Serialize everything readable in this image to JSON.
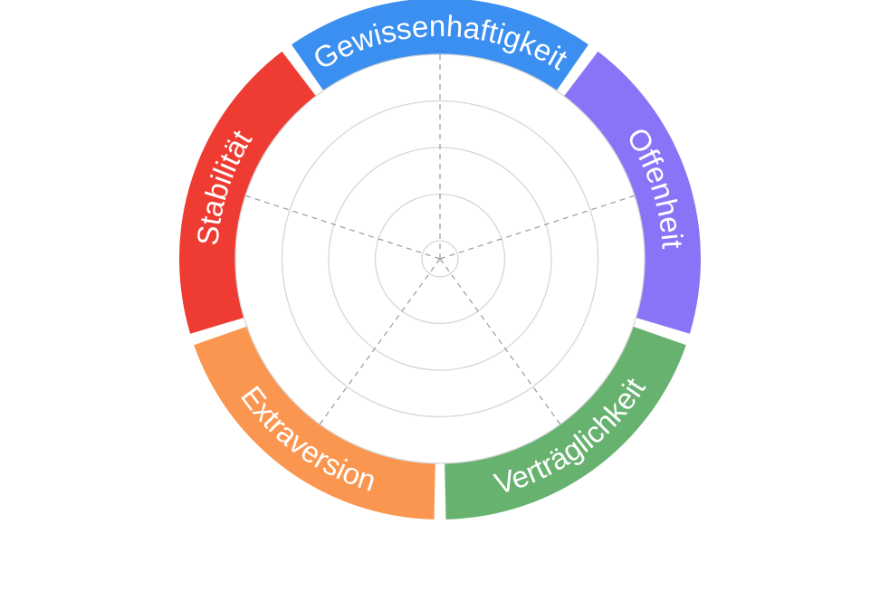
{
  "chart_data": {
    "type": "radar",
    "title": "",
    "rings": 5,
    "categories": [
      {
        "label": "Gewissenhaftigkeit",
        "color": "#3b8ff0"
      },
      {
        "label": "Offenheit",
        "color": "#8b73f7"
      },
      {
        "label": "Verträglichkeit",
        "color": "#67b26f"
      },
      {
        "label": "Extraversion",
        "color": "#fb9650"
      },
      {
        "label": "Stabilität",
        "color": "#ef3c33"
      }
    ],
    "series": []
  }
}
